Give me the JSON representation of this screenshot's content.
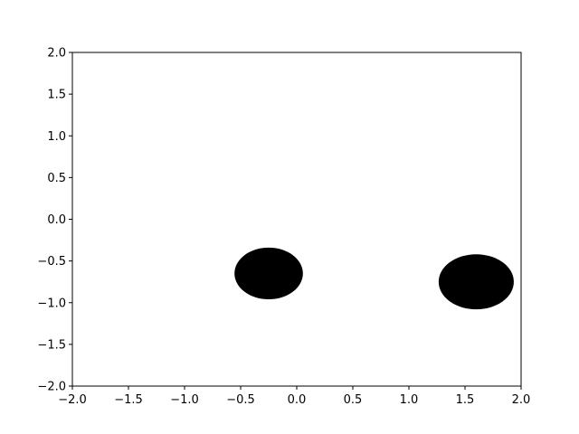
{
  "chart_data": {
    "type": "scatter",
    "title": "",
    "xlabel": "",
    "ylabel": "",
    "xlim": [
      -2.0,
      2.0
    ],
    "ylim": [
      -2.0,
      2.0
    ],
    "grid": false,
    "x_ticks": [
      -2.0,
      -1.5,
      -1.0,
      -0.5,
      0.0,
      0.5,
      1.0,
      1.5,
      2.0
    ],
    "x_tick_labels": [
      "−2.0",
      "−1.5",
      "−1.0",
      "−0.5",
      "0.0",
      "0.5",
      "1.0",
      "1.5",
      "2.0"
    ],
    "y_ticks": [
      2.0,
      1.5,
      1.0,
      0.5,
      0.0,
      -0.5,
      -1.0,
      -1.5,
      -2.0
    ],
    "y_tick_labels": [
      "2.0",
      "1.5",
      "1.0",
      "0.5",
      "0.0",
      "−0.5",
      "−1.0",
      "−1.5",
      "−2.0"
    ],
    "series": [
      {
        "name": "ellipses",
        "color": "#000000",
        "points": [
          {
            "x": -0.25,
            "y": -0.65,
            "width": 0.61,
            "height": 0.62
          },
          {
            "x": 1.6,
            "y": -0.75,
            "width": 0.67,
            "height": 0.66
          }
        ]
      }
    ]
  }
}
